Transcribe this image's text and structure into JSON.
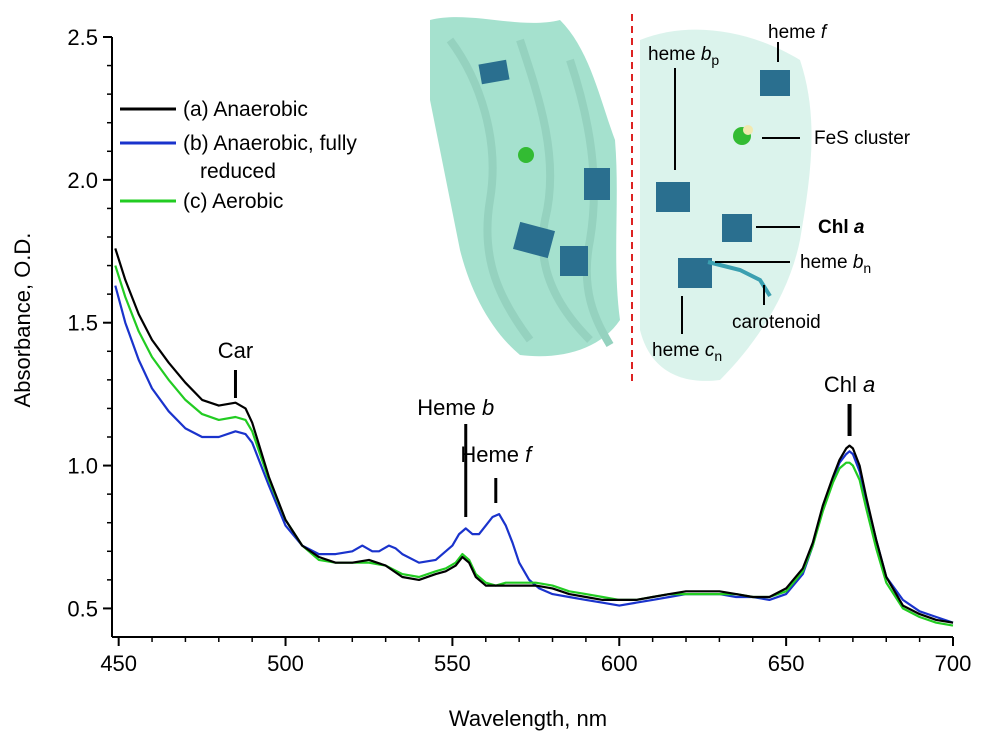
{
  "chart_data": {
    "type": "line",
    "xlabel": "Wavelength, nm",
    "ylabel": "Absorbance, O.D.",
    "xlim": [
      448,
      700
    ],
    "ylim": [
      0.4,
      2.5
    ],
    "xticks": [
      450,
      500,
      550,
      600,
      650,
      700
    ],
    "yticks": [
      0.5,
      1.0,
      1.5,
      2.0,
      2.5
    ],
    "ytick_labels": [
      "0.5",
      "1.0",
      "1.5",
      "2.0",
      "2.5"
    ],
    "legend_position": "top-left",
    "series": [
      {
        "name": "(a) Anaerobic",
        "color": "#000000",
        "x": [
          449,
          452,
          456,
          460,
          465,
          470,
          475,
          480,
          485,
          488,
          490,
          495,
          500,
          505,
          510,
          515,
          520,
          525,
          530,
          535,
          540,
          545,
          548,
          551,
          553,
          555,
          557,
          560,
          563,
          566,
          570,
          575,
          580,
          585,
          590,
          595,
          600,
          605,
          610,
          615,
          620,
          625,
          630,
          635,
          640,
          645,
          650,
          655,
          658,
          661,
          664,
          666,
          668,
          669,
          670,
          672,
          674,
          677,
          680,
          685,
          690,
          695,
          700
        ],
        "y": [
          1.76,
          1.65,
          1.53,
          1.44,
          1.36,
          1.29,
          1.23,
          1.21,
          1.22,
          1.2,
          1.15,
          0.96,
          0.81,
          0.72,
          0.68,
          0.66,
          0.66,
          0.67,
          0.65,
          0.61,
          0.6,
          0.62,
          0.63,
          0.65,
          0.68,
          0.66,
          0.61,
          0.58,
          0.58,
          0.58,
          0.58,
          0.58,
          0.57,
          0.55,
          0.54,
          0.53,
          0.53,
          0.53,
          0.54,
          0.55,
          0.56,
          0.56,
          0.56,
          0.55,
          0.54,
          0.54,
          0.57,
          0.64,
          0.73,
          0.86,
          0.96,
          1.02,
          1.06,
          1.07,
          1.06,
          1.0,
          0.89,
          0.74,
          0.61,
          0.51,
          0.48,
          0.46,
          0.45
        ]
      },
      {
        "name": "(b) Anaerobic, fully reduced",
        "color": "#1a33cc",
        "x": [
          449,
          452,
          456,
          460,
          465,
          470,
          475,
          480,
          485,
          488,
          490,
          495,
          500,
          505,
          510,
          515,
          520,
          523,
          526,
          528,
          531,
          533,
          535,
          540,
          545,
          550,
          552,
          554,
          556,
          558,
          560,
          562,
          564,
          566,
          568,
          570,
          573,
          576,
          580,
          585,
          590,
          595,
          600,
          605,
          610,
          615,
          620,
          625,
          630,
          635,
          640,
          645,
          650,
          655,
          658,
          661,
          664,
          666,
          668,
          669,
          670,
          672,
          674,
          677,
          680,
          685,
          690,
          695,
          700
        ],
        "y": [
          1.63,
          1.5,
          1.37,
          1.27,
          1.19,
          1.13,
          1.1,
          1.1,
          1.12,
          1.11,
          1.08,
          0.93,
          0.79,
          0.72,
          0.69,
          0.69,
          0.7,
          0.72,
          0.7,
          0.7,
          0.72,
          0.71,
          0.69,
          0.66,
          0.67,
          0.72,
          0.76,
          0.78,
          0.76,
          0.76,
          0.79,
          0.82,
          0.83,
          0.79,
          0.73,
          0.66,
          0.6,
          0.57,
          0.55,
          0.54,
          0.53,
          0.52,
          0.51,
          0.52,
          0.53,
          0.54,
          0.55,
          0.55,
          0.55,
          0.54,
          0.54,
          0.53,
          0.55,
          0.62,
          0.72,
          0.85,
          0.95,
          1.01,
          1.04,
          1.05,
          1.04,
          0.98,
          0.88,
          0.74,
          0.61,
          0.53,
          0.49,
          0.47,
          0.45
        ]
      },
      {
        "name": "(c) Aerobic",
        "color": "#22cc22",
        "x": [
          449,
          452,
          456,
          460,
          465,
          470,
          475,
          480,
          485,
          488,
          490,
          495,
          500,
          505,
          510,
          515,
          520,
          525,
          530,
          535,
          540,
          545,
          548,
          551,
          553,
          555,
          557,
          560,
          563,
          566,
          570,
          575,
          580,
          585,
          590,
          595,
          600,
          605,
          610,
          615,
          620,
          625,
          630,
          635,
          640,
          645,
          650,
          655,
          658,
          661,
          664,
          666,
          668,
          669,
          670,
          672,
          674,
          677,
          680,
          685,
          690,
          695,
          700
        ],
        "y": [
          1.7,
          1.59,
          1.47,
          1.38,
          1.3,
          1.23,
          1.18,
          1.16,
          1.17,
          1.16,
          1.12,
          0.95,
          0.81,
          0.72,
          0.67,
          0.66,
          0.66,
          0.66,
          0.65,
          0.62,
          0.61,
          0.63,
          0.64,
          0.66,
          0.69,
          0.67,
          0.62,
          0.59,
          0.58,
          0.59,
          0.59,
          0.59,
          0.58,
          0.56,
          0.55,
          0.54,
          0.53,
          0.53,
          0.54,
          0.55,
          0.55,
          0.55,
          0.55,
          0.55,
          0.54,
          0.54,
          0.56,
          0.63,
          0.72,
          0.84,
          0.94,
          0.99,
          1.01,
          1.01,
          1.0,
          0.95,
          0.85,
          0.71,
          0.59,
          0.5,
          0.47,
          0.45,
          0.44
        ]
      }
    ],
    "annotations": [
      {
        "label": "Car",
        "x": 485
      },
      {
        "label": "Heme ",
        "italic": "b",
        "x": 554
      },
      {
        "label": "Heme ",
        "italic": "f",
        "x": 563
      },
      {
        "label": "Chl ",
        "italic": "a",
        "x": 669
      }
    ]
  },
  "inset": {
    "labels": {
      "heme_bp": {
        "text": "heme ",
        "italic": "b",
        "sub": "p"
      },
      "heme_f": {
        "text": "heme ",
        "italic": "f"
      },
      "fes": {
        "text": "FeS cluster"
      },
      "chl_a": {
        "text": "Chl ",
        "italic": "a"
      },
      "heme_bn": {
        "text": "heme ",
        "italic": "b",
        "sub": "n"
      },
      "carotenoid": {
        "text": "carotenoid"
      },
      "heme_cn": {
        "text": "heme ",
        "italic": "c",
        "sub": "n"
      }
    },
    "colors": {
      "protein": "#5cc9a7",
      "ligand": "#3a9fb0",
      "divider": "#dd2222",
      "fes": "#33bb33"
    }
  }
}
